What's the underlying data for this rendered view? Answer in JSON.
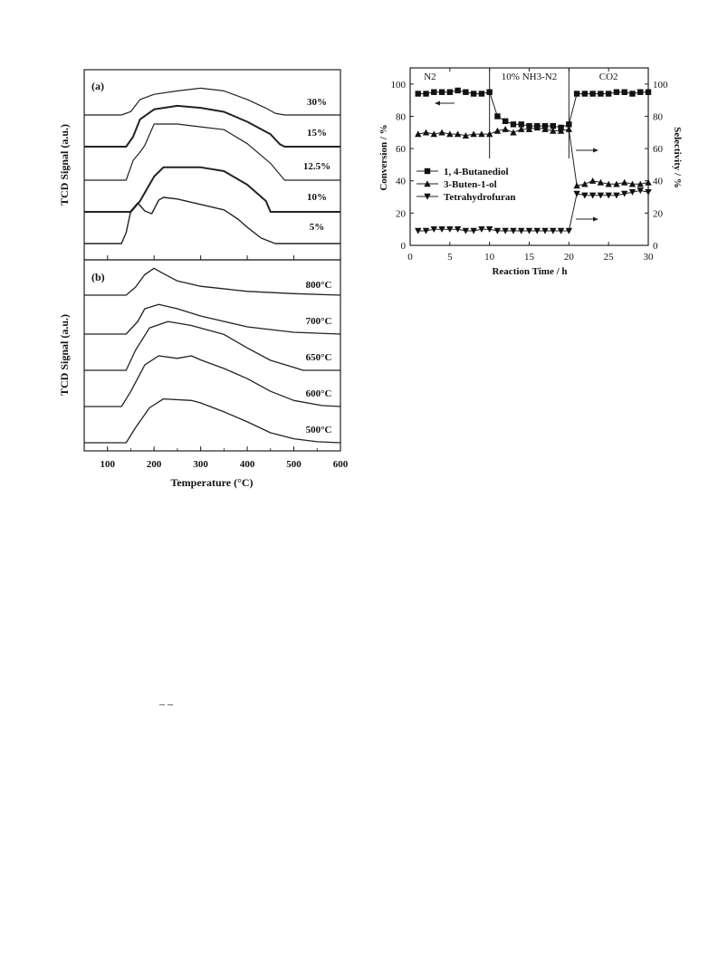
{
  "chart_data": [
    {
      "type": "line",
      "panel_label": "(a)",
      "ylabel": "TCD Signal (a.u.)",
      "xlim": [
        50,
        600
      ],
      "x_ticks": [
        "100",
        "200",
        "300",
        "400",
        "500",
        "600"
      ],
      "curve_labels": [
        "30%",
        "15%",
        "12.5%",
        "10%",
        "5%"
      ],
      "series": [
        {
          "name": "30%",
          "x": [
            50,
            130,
            150,
            170,
            200,
            250,
            300,
            350,
            400,
            440,
            460,
            480,
            500,
            600
          ],
          "y": [
            0,
            0,
            0.1,
            0.45,
            0.6,
            0.7,
            0.78,
            0.7,
            0.45,
            0.2,
            0.05,
            0,
            0,
            0
          ]
        },
        {
          "name": "15%",
          "x": [
            50,
            140,
            155,
            170,
            200,
            250,
            300,
            350,
            400,
            450,
            470,
            480,
            600
          ],
          "y": [
            0,
            0,
            0.2,
            0.55,
            0.75,
            0.82,
            0.78,
            0.7,
            0.5,
            0.25,
            0.05,
            0,
            0
          ]
        },
        {
          "name": "12.5%",
          "x": [
            50,
            140,
            155,
            170,
            180,
            200,
            250,
            300,
            350,
            400,
            450,
            470,
            480,
            600
          ],
          "y": [
            0,
            0,
            0.35,
            0.5,
            0.62,
            1.0,
            1.0,
            0.95,
            0.9,
            0.65,
            0.3,
            0.1,
            0,
            0
          ]
        },
        {
          "name": "10%",
          "x": [
            50,
            150,
            170,
            190,
            200,
            220,
            250,
            300,
            350,
            400,
            440,
            450,
            600
          ],
          "y": [
            0,
            0,
            0.2,
            0.5,
            0.65,
            0.82,
            0.82,
            0.82,
            0.75,
            0.5,
            0.2,
            0,
            0
          ]
        },
        {
          "name": "5%",
          "x": [
            50,
            130,
            140,
            150,
            165,
            180,
            195,
            210,
            220,
            250,
            300,
            350,
            380,
            400,
            430,
            460,
            600
          ],
          "y": [
            0,
            0,
            0.2,
            0.6,
            0.75,
            0.6,
            0.55,
            0.8,
            0.85,
            0.82,
            0.72,
            0.62,
            0.45,
            0.3,
            0.1,
            0,
            0
          ]
        }
      ]
    },
    {
      "type": "line",
      "panel_label": "(b)",
      "ylabel": "TCD Signal (a.u.)",
      "xlabel": "Temperature (°C)",
      "xlim": [
        50,
        600
      ],
      "x_ticks": [
        "100",
        "200",
        "300",
        "400",
        "500",
        "600"
      ],
      "curve_labels": [
        "800°C",
        "700°C",
        "650°C",
        "600°C",
        "500°C"
      ],
      "series": [
        {
          "name": "800°C",
          "x": [
            50,
            140,
            160,
            180,
            200,
            215,
            250,
            300,
            400,
            500,
            600
          ],
          "y": [
            0,
            0,
            0.25,
            0.65,
            0.85,
            0.72,
            0.45,
            0.28,
            0.12,
            0.05,
            0
          ]
        },
        {
          "name": "700°C",
          "x": [
            50,
            140,
            165,
            180,
            210,
            250,
            300,
            350,
            400,
            500,
            600
          ],
          "y": [
            0,
            0,
            0.35,
            0.7,
            0.82,
            0.7,
            0.5,
            0.35,
            0.2,
            0.05,
            0
          ]
        },
        {
          "name": "650°C",
          "x": [
            50,
            140,
            160,
            190,
            230,
            280,
            350,
            400,
            450,
            500,
            520,
            600
          ],
          "y": [
            0,
            0,
            0.4,
            0.85,
            0.98,
            0.9,
            0.72,
            0.45,
            0.2,
            0.06,
            0,
            0
          ]
        },
        {
          "name": "600°C",
          "x": [
            50,
            130,
            150,
            180,
            210,
            250,
            280,
            300,
            350,
            400,
            450,
            500,
            560,
            600
          ],
          "y": [
            0,
            0,
            0.3,
            0.82,
            1.0,
            0.95,
            1.0,
            0.92,
            0.75,
            0.55,
            0.3,
            0.12,
            0.02,
            0
          ]
        },
        {
          "name": "500°C",
          "x": [
            50,
            140,
            160,
            190,
            220,
            280,
            300,
            350,
            400,
            450,
            500,
            550,
            600
          ],
          "y": [
            0,
            0,
            0.3,
            0.7,
            0.88,
            0.85,
            0.8,
            0.62,
            0.42,
            0.2,
            0.08,
            0.02,
            0
          ]
        }
      ]
    },
    {
      "type": "line",
      "xlabel": "Reaction Time / h",
      "ylabel": "Conversion / %",
      "ylabel_right": "Selectivity / %",
      "xlim": [
        0,
        30
      ],
      "ylim": [
        0,
        110
      ],
      "x_ticks": [
        "0",
        "5",
        "10",
        "15",
        "20",
        "25",
        "30"
      ],
      "y_ticks": [
        "0",
        "20",
        "40",
        "60",
        "80",
        "100"
      ],
      "y_ticks_right": [
        "0",
        "20",
        "40",
        "60",
        "80",
        "100"
      ],
      "regions": [
        "N2",
        "10% NH3-N2",
        "CO2"
      ],
      "region_boundaries": [
        10,
        20
      ],
      "series": [
        {
          "name": "1, 4-Butanediol",
          "marker": "square",
          "x": [
            1,
            2,
            3,
            4,
            5,
            6,
            7,
            8,
            9,
            10,
            11,
            12,
            13,
            14,
            15,
            16,
            17,
            18,
            19,
            20,
            21,
            22,
            23,
            24,
            25,
            26,
            27,
            28,
            29,
            30
          ],
          "y": [
            94,
            94,
            95,
            95,
            95,
            96,
            95,
            94,
            94,
            95,
            80,
            77,
            75,
            75,
            74,
            74,
            74,
            74,
            73,
            75,
            94,
            94,
            94,
            94,
            94,
            95,
            95,
            94,
            95,
            95
          ]
        },
        {
          "name": "3-Buten-1-ol",
          "marker": "triangle-up",
          "x": [
            1,
            2,
            3,
            4,
            5,
            6,
            7,
            8,
            9,
            10,
            11,
            12,
            13,
            14,
            15,
            16,
            17,
            18,
            19,
            20,
            21,
            22,
            23,
            24,
            25,
            26,
            27,
            28,
            29,
            30
          ],
          "y": [
            69,
            70,
            69,
            70,
            69,
            69,
            68,
            69,
            69,
            69,
            71,
            72,
            70,
            72,
            72,
            73,
            72,
            71,
            71,
            72,
            37,
            38,
            40,
            39,
            38,
            38,
            39,
            38,
            38,
            39
          ]
        },
        {
          "name": "Tetrahydrofuran",
          "marker": "triangle-down",
          "x": [
            1,
            2,
            3,
            4,
            5,
            6,
            7,
            8,
            9,
            10,
            11,
            12,
            13,
            14,
            15,
            16,
            17,
            18,
            19,
            20,
            21,
            22,
            23,
            24,
            25,
            26,
            27,
            28,
            29,
            30
          ],
          "y": [
            9,
            9,
            10,
            10,
            10,
            10,
            9,
            9,
            10,
            10,
            9,
            9,
            9,
            9,
            9,
            9,
            9,
            9,
            9,
            9,
            32,
            31,
            31,
            31,
            31,
            31,
            32,
            33,
            34,
            33
          ]
        }
      ]
    }
  ],
  "footer_mark": "– –"
}
